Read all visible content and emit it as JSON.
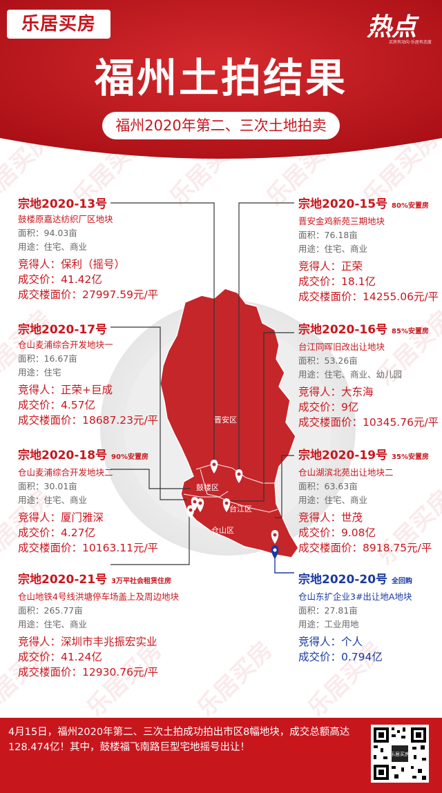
{
  "brand": "乐居买房",
  "badge": {
    "big": "热点",
    "small": "买房有动向·乐居有态度"
  },
  "title": "福州土拍结果",
  "subtitle": "福州2020年第二、三次土地拍卖",
  "watermark": "乐居买房",
  "colors": {
    "red": "#c8161d",
    "blue": "#1a3aa0",
    "map_red": "#c4262a"
  },
  "plots": [
    {
      "code": "宗地2020-13号",
      "tag": "",
      "name": "鼓楼原嘉达纺织厂区地块",
      "area": "面积：94.03亩",
      "use": "用途：住宅、商业",
      "winner": "竞得人：保利（摇号）",
      "price": "成交价：41.42亿",
      "unit": "成交楼面价：27997.59元/平"
    },
    {
      "code": "宗地2020-15号",
      "tag": "80%安置房",
      "name": "晋安金鸡新苑三期地块",
      "area": "面积：76.18亩",
      "use": "用途：住宅、商业",
      "winner": "竞得人：正荣",
      "price": "成交价：18.1亿",
      "unit": "成交楼面价：14255.06元/平"
    },
    {
      "code": "宗地2020-17号",
      "tag": "",
      "name": "仓山麦浦综合开发地块一",
      "area": "面积：16.67亩",
      "use": "用途：住宅",
      "winner": "竞得人：正荣+巨成",
      "price": "成交价：4.57亿",
      "unit": "成交楼面价：18687.23元/平"
    },
    {
      "code": "宗地2020-16号",
      "tag": "85%安置房",
      "name": "台江同晖旧改出让地块",
      "area": "面积：53.26亩",
      "use": "用途：住宅、商业、幼儿园",
      "winner": "竞得人：大东海",
      "price": "成交价：9亿",
      "unit": "成交楼面价：10345.76元/平"
    },
    {
      "code": "宗地2020-18号",
      "tag": "90%安置房",
      "name": "仓山麦浦综合开发地块二",
      "area": "面积：30.01亩",
      "use": "用途：住宅、商业",
      "winner": "竞得人：厦门雅深",
      "price": "成交价：4.27亿",
      "unit": "成交楼面价：10163.11元/平"
    },
    {
      "code": "宗地2020-19号",
      "tag": "35%安置房",
      "name": "仓山湖滨北苑出让地块二",
      "area": "面积：63.63亩",
      "use": "用途：住宅、商业",
      "winner": "竞得人：世茂",
      "price": "成交价：9.08亿",
      "unit": "成交楼面价：8918.75元/平"
    },
    {
      "code": "宗地2020-21号",
      "tag": "3万平社会租赁住房",
      "name": "仓山地铁4号线洪塘停车场盖上及周边地块",
      "area": "面积：265.77亩",
      "use": "用途：住宅、商业",
      "winner": "竞得人：深圳市丰兆振宏实业",
      "price": "成交价：41.24亿",
      "unit": "成交楼面价：12930.76元/平"
    },
    {
      "code": "宗地2020-20号",
      "tag": "全回购",
      "name": "仓山东扩企业3#出让地A地块",
      "area": "面积：27.81亩",
      "use": "用途：工业用地",
      "winner": "竞得人：个人",
      "price": "成交价：0.794亿",
      "unit": ""
    }
  ],
  "districts": {
    "jinan": "晋安区",
    "gulou": "鼓楼区",
    "taijiang": "台江区",
    "cangshan": "仓山区"
  },
  "footer": "4月15日，福州2020年第二、三次土拍成功拍出市区8幅地块，成交总额高达128.474亿！其中，鼓楼福飞南路巨型宅地摇号出让！",
  "qr_label": "乐居买房"
}
